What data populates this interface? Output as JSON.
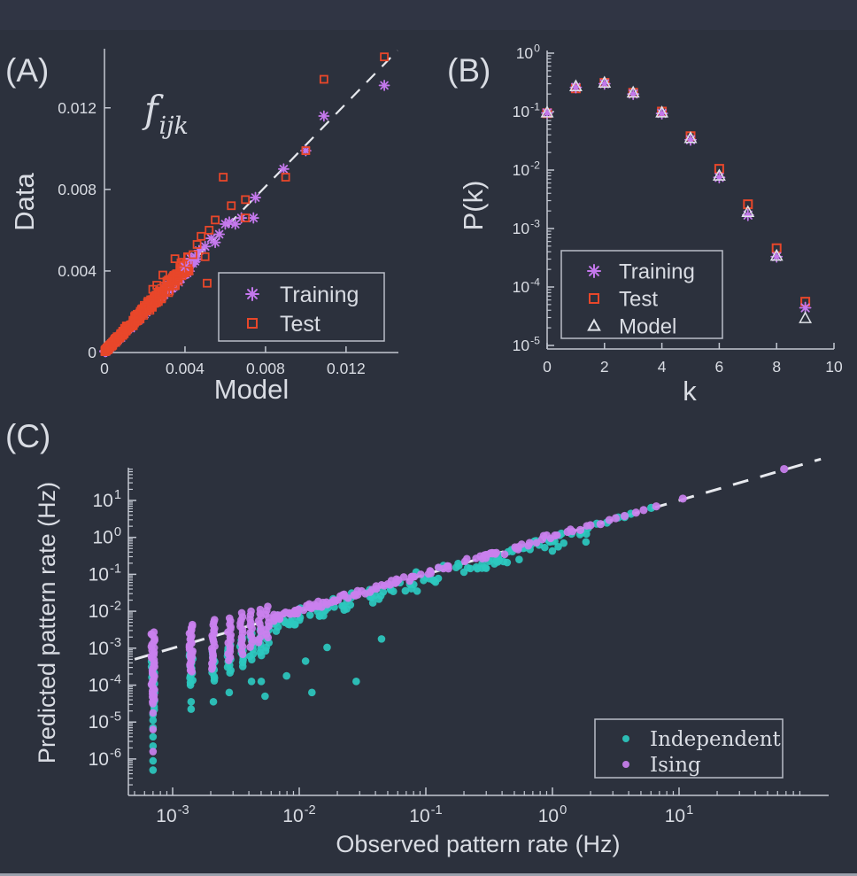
{
  "figure": {
    "background": "#2c313d",
    "axis_color": "#c3c8d2",
    "text_color": "#d9dce3",
    "dash_color": "#e7e9ee",
    "legend_border": "#b9bec8"
  },
  "panels": {
    "a_label": "(A)",
    "b_label": "(B)",
    "c_label": "(C)"
  },
  "chart_data": [
    {
      "id": "A",
      "type": "scatter",
      "title_base": "f",
      "title_sub": "ijk",
      "xlabel": "Model",
      "ylabel": "Data",
      "xlim": [
        0,
        0.0146
      ],
      "ylim": [
        0,
        0.0149
      ],
      "xticks": [
        0,
        0.004,
        0.008,
        0.012
      ],
      "yticks": [
        0,
        0.004,
        0.008,
        0.012
      ],
      "xtick_labels": [
        "0",
        "0.004",
        "0.008",
        "0.012"
      ],
      "ytick_labels": [
        "0",
        "0.004",
        "0.008",
        "0.012"
      ],
      "identity_line": true,
      "grid": false,
      "legend_position": "lower-right",
      "series": [
        {
          "name": "Training",
          "marker": "asterisk",
          "color": "#c478ec",
          "points": [
            [
              0.0139,
              0.0131
            ],
            [
              0.0109,
              0.0116
            ],
            [
              0.01,
              0.0099
            ],
            [
              0.0089,
              0.009
            ],
            [
              0.0075,
              0.0076
            ],
            [
              0.0074,
              0.0066
            ],
            [
              0.0068,
              0.0066
            ],
            [
              0.0065,
              0.0063
            ],
            [
              0.0062,
              0.0064
            ],
            [
              0.006,
              0.0063
            ],
            [
              0.0057,
              0.0058
            ],
            [
              0.0055,
              0.0054
            ],
            [
              0.0053,
              0.0056
            ],
            [
              0.005,
              0.0052
            ],
            [
              0.0047,
              0.005
            ],
            [
              0.0045,
              0.0047
            ],
            [
              0.0043,
              0.0046
            ],
            [
              0.004,
              0.0042
            ]
          ],
          "cloud": {
            "n": 320,
            "x_max": 0.0046,
            "power": 1.7,
            "spread_base": 8e-05,
            "spread_slope": 0.06,
            "bias": 0.0,
            "seed": 7
          }
        },
        {
          "name": "Test",
          "marker": "square",
          "color": "#e8472a",
          "points": [
            [
              0.0139,
              0.0145
            ],
            [
              0.0109,
              0.0134
            ],
            [
              0.01,
              0.0099
            ],
            [
              0.009,
              0.0086
            ],
            [
              0.0059,
              0.0086
            ],
            [
              0.0063,
              0.0072
            ],
            [
              0.007,
              0.0075
            ],
            [
              0.007,
              0.0066
            ],
            [
              0.0052,
              0.006
            ],
            [
              0.0055,
              0.0065
            ],
            [
              0.0046,
              0.0053
            ],
            [
              0.0048,
              0.0057
            ],
            [
              0.0044,
              0.0048
            ],
            [
              0.005,
              0.0047
            ],
            [
              0.0042,
              0.004
            ],
            [
              0.0035,
              0.0046
            ],
            [
              0.0038,
              0.0044
            ],
            [
              0.0029,
              0.0038
            ],
            [
              0.0031,
              0.0035
            ],
            [
              0.0051,
              0.0034
            ],
            [
              0.0026,
              0.0033
            ],
            [
              0.0024,
              0.0031
            ],
            [
              0.0027,
              0.0029
            ]
          ],
          "cloud": {
            "n": 600,
            "x_max": 0.0042,
            "power": 1.9,
            "spread_base": 0.00013,
            "spread_slope": 0.1,
            "bias": 0.25,
            "seed": 13
          }
        }
      ]
    },
    {
      "id": "B",
      "type": "scatter",
      "xlabel": "k",
      "ylabel": "P(k)",
      "xlim": [
        0,
        10
      ],
      "xticks": [
        0,
        2,
        4,
        6,
        8,
        10
      ],
      "yscale": "log",
      "ylim_log": [
        -5,
        0
      ],
      "ytick_exponents": [
        0,
        -1,
        -2,
        -3,
        -4,
        -5
      ],
      "grid": false,
      "legend_position": "lower-left-inside",
      "categories": [
        0,
        1,
        2,
        3,
        4,
        5,
        6,
        7,
        8,
        9
      ],
      "series": [
        {
          "name": "Training",
          "marker": "asterisk",
          "color": "#c478ec",
          "values": [
            0.095,
            0.26,
            0.3,
            0.2,
            0.093,
            0.033,
            0.0075,
            0.0017,
            0.00033,
            4.4e-05
          ]
        },
        {
          "name": "Test",
          "marker": "square",
          "color": "#e8472a",
          "values": [
            0.094,
            0.25,
            0.31,
            0.21,
            0.1,
            0.038,
            0.0105,
            0.0026,
            0.00046,
            5.6e-05
          ]
        },
        {
          "name": "Model",
          "marker": "triangle",
          "color": "#dfe2e8",
          "values": [
            0.096,
            0.27,
            0.31,
            0.21,
            0.096,
            0.035,
            0.008,
            0.0019,
            0.00034,
            2.9e-05
          ]
        }
      ]
    },
    {
      "id": "C",
      "type": "scatter",
      "xlabel": "Observed pattern rate (Hz)",
      "ylabel": "Predicted pattern rate (Hz)",
      "xscale": "log",
      "yscale": "log",
      "xlim_log": [
        -3.33,
        2.16
      ],
      "ylim_log": [
        -6.95,
        1.88
      ],
      "xtick_exponents": [
        -3,
        -2,
        -1,
        0,
        1
      ],
      "ytick_exponents": [
        1,
        0,
        -1,
        -2,
        -3,
        -4,
        -5,
        -6
      ],
      "identity_line": true,
      "grid": false,
      "legend_position": "lower-right",
      "series": [
        {
          "name": "Independent",
          "marker": "dot",
          "color": "#2cc8bf",
          "columns": [
            {
              "x": 0.0007,
              "from": -4.65,
              "to": -3.35,
              "n": 18
            },
            {
              "x": 0.0014,
              "from": -4.0,
              "to": -3.1,
              "n": 15
            },
            {
              "x": 0.0021,
              "from": -3.9,
              "to": -3.08,
              "n": 12
            },
            {
              "x": 0.0028,
              "from": -3.68,
              "to": -2.91,
              "n": 11
            },
            {
              "x": 0.0035,
              "from": -3.48,
              "to": -2.72,
              "n": 10
            },
            {
              "x": 0.0042,
              "from": -3.32,
              "to": -2.6,
              "n": 9
            },
            {
              "x": 0.0049,
              "from": -3.2,
              "to": -2.48,
              "n": 8
            },
            {
              "x": 0.0056,
              "from": -3.08,
              "to": -2.4,
              "n": 7
            }
          ],
          "tail_points": [
            [
              -3.155,
              -4.8
            ],
            [
              -3.155,
              -4.95
            ],
            [
              -3.155,
              -5.15
            ],
            [
              -3.155,
              -5.4
            ],
            [
              -3.155,
              -5.65
            ],
            [
              -3.155,
              -6.05
            ],
            [
              -3.155,
              -6.3
            ],
            [
              -2.854,
              -4.45
            ],
            [
              -2.854,
              -4.65
            ],
            [
              -2.678,
              -4.45
            ],
            [
              -2.553,
              -4.2
            ],
            [
              -2.377,
              -3.9
            ],
            [
              -2.27,
              -4.3
            ],
            [
              -2.1,
              -3.75
            ],
            [
              -1.95,
              -3.35
            ],
            [
              -1.78,
              -2.98
            ],
            [
              -1.55,
              -3.9
            ],
            [
              -1.35,
              -2.75
            ],
            [
              -2.3,
              -3.9
            ],
            [
              -1.9,
              -4.2
            ]
          ],
          "diagonal": {
            "n": 120,
            "from": -2.2,
            "to": 0.3,
            "bias": -0.15,
            "jitter": 0.3,
            "seed": 9
          },
          "points": [
            [
              0.43,
              0.4
            ],
            [
              0.57,
              0.55
            ],
            [
              0.62,
              0.64
            ],
            [
              0.78,
              0.8
            ],
            [
              0.35,
              0.37
            ],
            [
              0.28,
              0.25
            ],
            [
              0.15,
              0.1
            ],
            [
              0.07,
              0.1
            ],
            [
              -0.03,
              -0.08
            ],
            [
              -0.13,
              -0.1
            ],
            [
              -0.22,
              -0.28
            ],
            [
              0.52,
              0.54
            ]
          ]
        },
        {
          "name": "Ising",
          "marker": "dot",
          "color": "#ca80ee",
          "columns": [
            {
              "x": 0.0007,
              "from": -4.5,
              "to": -2.55,
              "n": 36
            },
            {
              "x": 0.0014,
              "from": -3.65,
              "to": -2.36,
              "n": 26
            },
            {
              "x": 0.0021,
              "from": -3.56,
              "to": -2.24,
              "n": 20
            },
            {
              "x": 0.0028,
              "from": -3.32,
              "to": -2.19,
              "n": 16
            },
            {
              "x": 0.0035,
              "from": -3.15,
              "to": -2.05,
              "n": 13
            },
            {
              "x": 0.0042,
              "from": -2.96,
              "to": -2.0,
              "n": 11
            },
            {
              "x": 0.0049,
              "from": -2.84,
              "to": -1.95,
              "n": 10
            },
            {
              "x": 0.0056,
              "from": -2.72,
              "to": -1.88,
              "n": 9
            }
          ],
          "tail_points": [
            [
              -3.155,
              -4.75
            ],
            [
              -3.155,
              -5.2
            ],
            [
              -3.155,
              -5.8
            ]
          ],
          "diagonal": {
            "n": 120,
            "from": -2.2,
            "to": 0.3,
            "bias": 0.03,
            "jitter": 0.12,
            "seed": 21
          },
          "points": [
            [
              0.45,
              0.47
            ],
            [
              0.57,
              0.58
            ],
            [
              0.66,
              0.67
            ],
            [
              0.72,
              0.74
            ],
            [
              0.82,
              0.84
            ],
            [
              1.03,
              1.05
            ],
            [
              1.83,
              1.85
            ],
            [
              0.38,
              0.36
            ],
            [
              0.3,
              0.33
            ],
            [
              0.22,
              0.2
            ],
            [
              0.12,
              0.15
            ],
            [
              0.02,
              0.05
            ],
            [
              -0.08,
              -0.05
            ],
            [
              -0.18,
              -0.15
            ],
            [
              0.5,
              0.52
            ]
          ]
        }
      ]
    }
  ]
}
